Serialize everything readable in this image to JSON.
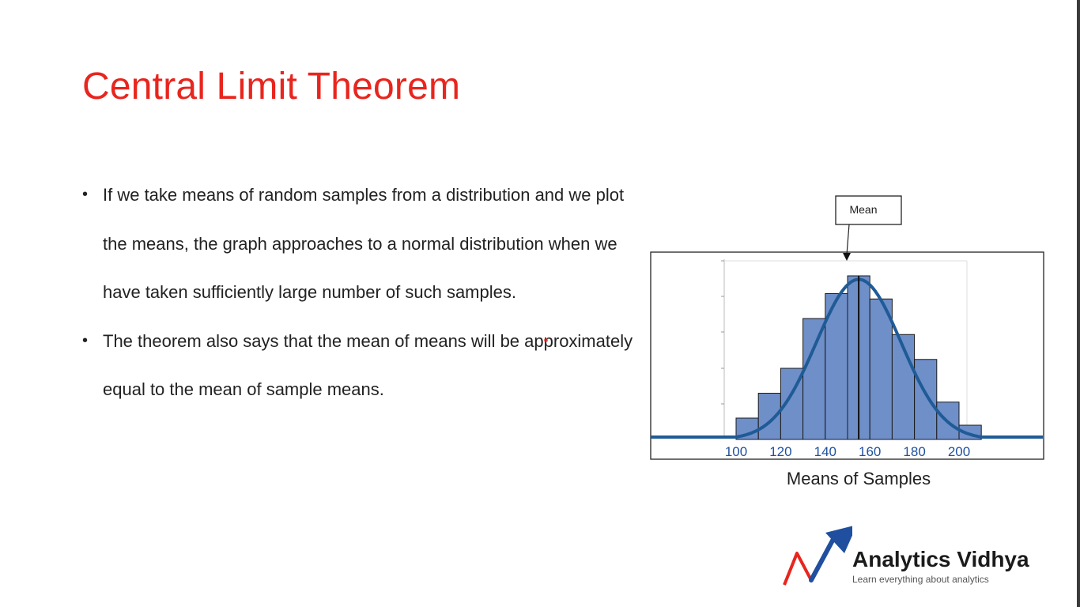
{
  "slide": {
    "title": "Central Limit Theorem",
    "bullets": [
      "If we take means of random samples from a distribution and we plot the means, the graph approaches to a normal distribution when we have taken sufficiently large number of such samples.",
      "The theorem also says that the mean of means will be approximately equal to the mean of sample means."
    ]
  },
  "chart_data": {
    "type": "bar",
    "xlabel": "Means of Samples",
    "ylabel": "",
    "annotation": "Mean",
    "x_ticks": [
      100,
      120,
      140,
      160,
      180,
      200
    ],
    "bins": [
      {
        "x0": 100,
        "x1": 110,
        "value": 1.2
      },
      {
        "x0": 110,
        "x1": 120,
        "value": 2.6
      },
      {
        "x0": 120,
        "x1": 130,
        "value": 4.0
      },
      {
        "x0": 130,
        "x1": 140,
        "value": 6.8
      },
      {
        "x0": 140,
        "x1": 150,
        "value": 8.2
      },
      {
        "x0": 150,
        "x1": 160,
        "value": 9.2
      },
      {
        "x0": 160,
        "x1": 170,
        "value": 7.9
      },
      {
        "x0": 170,
        "x1": 180,
        "value": 5.9
      },
      {
        "x0": 180,
        "x1": 190,
        "value": 4.5
      },
      {
        "x0": 190,
        "x1": 200,
        "value": 2.1
      },
      {
        "x0": 200,
        "x1": 210,
        "value": 0.8
      }
    ],
    "curve": {
      "mean": 155,
      "sd": 19,
      "peak": 9.0
    },
    "xlim": [
      99.5,
      210.5
    ],
    "ylim": [
      0,
      9.6
    ],
    "grid": false,
    "colors": {
      "bar": "#6f8fc9",
      "curve": "#1f5b96",
      "tick_text": "#1f4f9e"
    }
  },
  "logo": {
    "name": "Analytics Vidhya",
    "tagline": "Learn everything about analytics"
  }
}
